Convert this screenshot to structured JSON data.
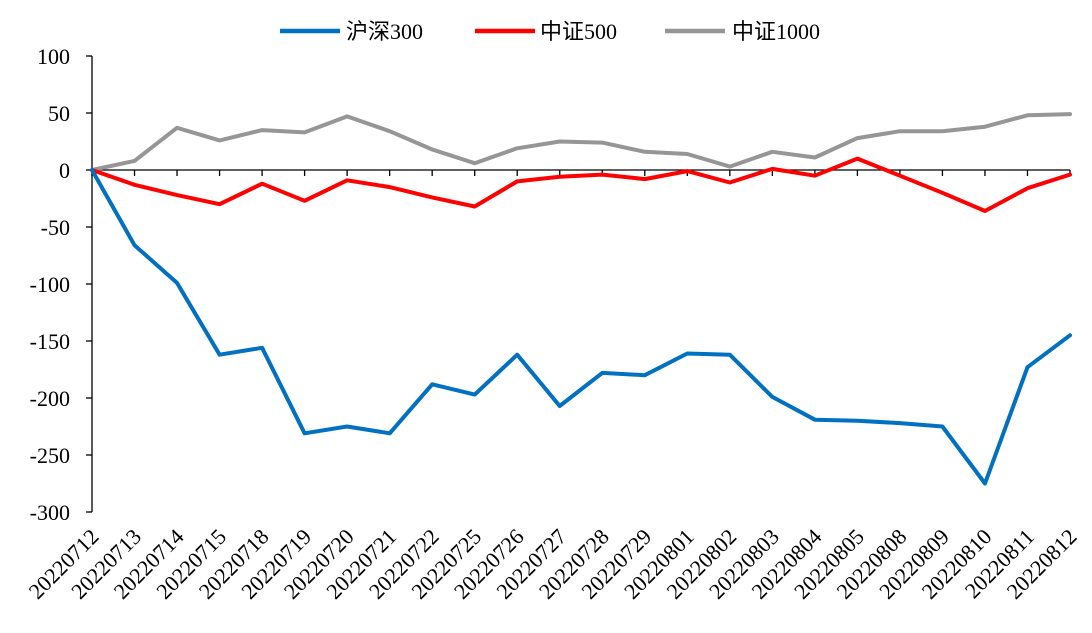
{
  "chart_data": {
    "type": "line",
    "title": "",
    "xlabel": "",
    "ylabel": "",
    "ylim": [
      -300,
      100
    ],
    "yticks": [
      100,
      50,
      0,
      -50,
      -100,
      -150,
      -200,
      -250,
      -300
    ],
    "categories": [
      "20220712",
      "20220713",
      "20220714",
      "20220715",
      "20220718",
      "20220719",
      "20220720",
      "20220721",
      "20220722",
      "20220725",
      "20220726",
      "20220727",
      "20220728",
      "20220729",
      "20220801",
      "20220802",
      "20220803",
      "20220804",
      "20220805",
      "20220808",
      "20220809",
      "20220810",
      "20220811",
      "20220812"
    ],
    "legend_position": "top",
    "grid": false,
    "series": [
      {
        "name": "沪深300",
        "color": "#0070c0",
        "values": [
          0,
          -66,
          -99,
          -162,
          -156,
          -231,
          -225,
          -231,
          -188,
          -197,
          -162,
          -207,
          -178,
          -180,
          -161,
          -162,
          -199,
          -219,
          -220,
          -222,
          -225,
          -275,
          -173,
          -145
        ]
      },
      {
        "name": "中证500",
        "color": "#ff0000",
        "values": [
          0,
          -13,
          -22,
          -30,
          -12,
          -27,
          -9,
          -15,
          -24,
          -32,
          -10,
          -6,
          -4,
          -8,
          -1,
          -11,
          1,
          -5,
          10,
          -5,
          -20,
          -36,
          -16,
          -4
        ]
      },
      {
        "name": "中证1000",
        "color": "#969696",
        "values": [
          0,
          8,
          37,
          26,
          35,
          33,
          47,
          34,
          18,
          6,
          19,
          25,
          24,
          16,
          14,
          3,
          16,
          11,
          28,
          34,
          34,
          38,
          48,
          49
        ]
      }
    ]
  }
}
